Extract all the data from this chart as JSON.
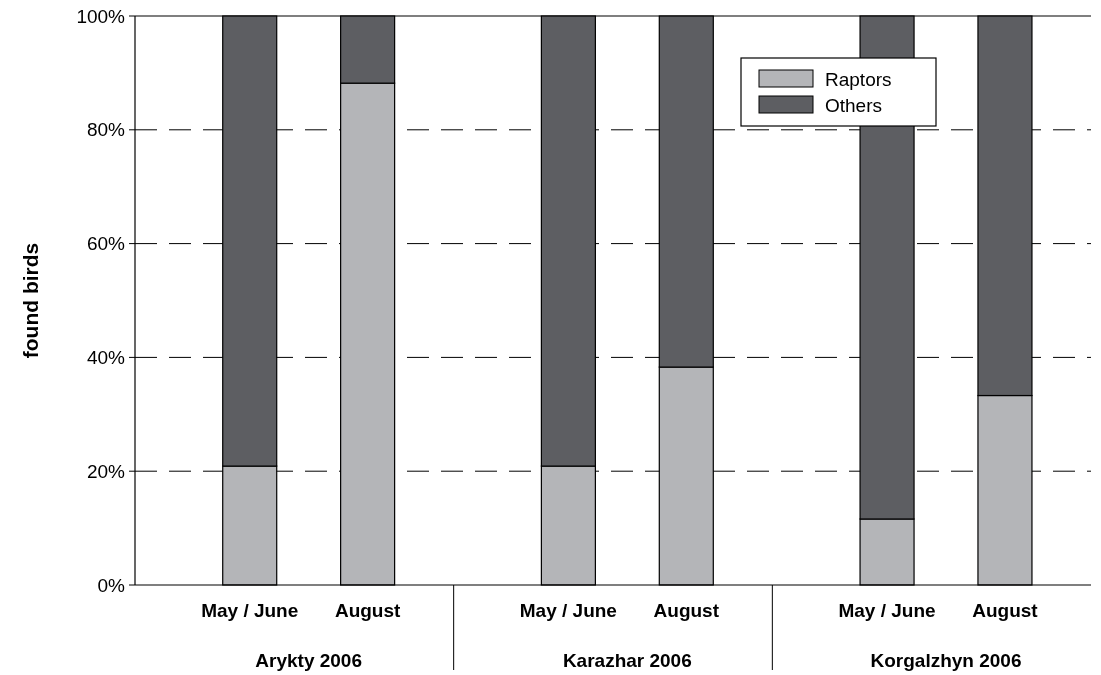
{
  "chart_data": {
    "type": "bar",
    "stacked": true,
    "ylabel": "found birds",
    "categories": [
      "May / June",
      "August",
      "May / June",
      "August",
      "May / June",
      "August"
    ],
    "series": [
      {
        "name": "Raptors",
        "color": "#b4b5b8",
        "values": [
          20.9,
          88.2,
          20.9,
          38.3,
          11.6,
          33.3
        ]
      },
      {
        "name": "Others",
        "color": "#5d5e62",
        "values": [
          79.1,
          11.8,
          79.1,
          61.7,
          88.4,
          66.7
        ]
      }
    ],
    "ylim": [
      0,
      100
    ],
    "yticks": [
      {
        "value": 0,
        "label": "0%"
      },
      {
        "value": 20,
        "label": "20%"
      },
      {
        "value": 40,
        "label": "40%"
      },
      {
        "value": 60,
        "label": "60%"
      },
      {
        "value": 80,
        "label": "80%"
      },
      {
        "value": 100,
        "label": "100%"
      }
    ],
    "grid": "y",
    "line_style": "dashed",
    "legend": "top right",
    "annotations": [
      "Arykty 2006",
      "Karazhar 2006",
      "Korgalzhyn 2006"
    ]
  }
}
